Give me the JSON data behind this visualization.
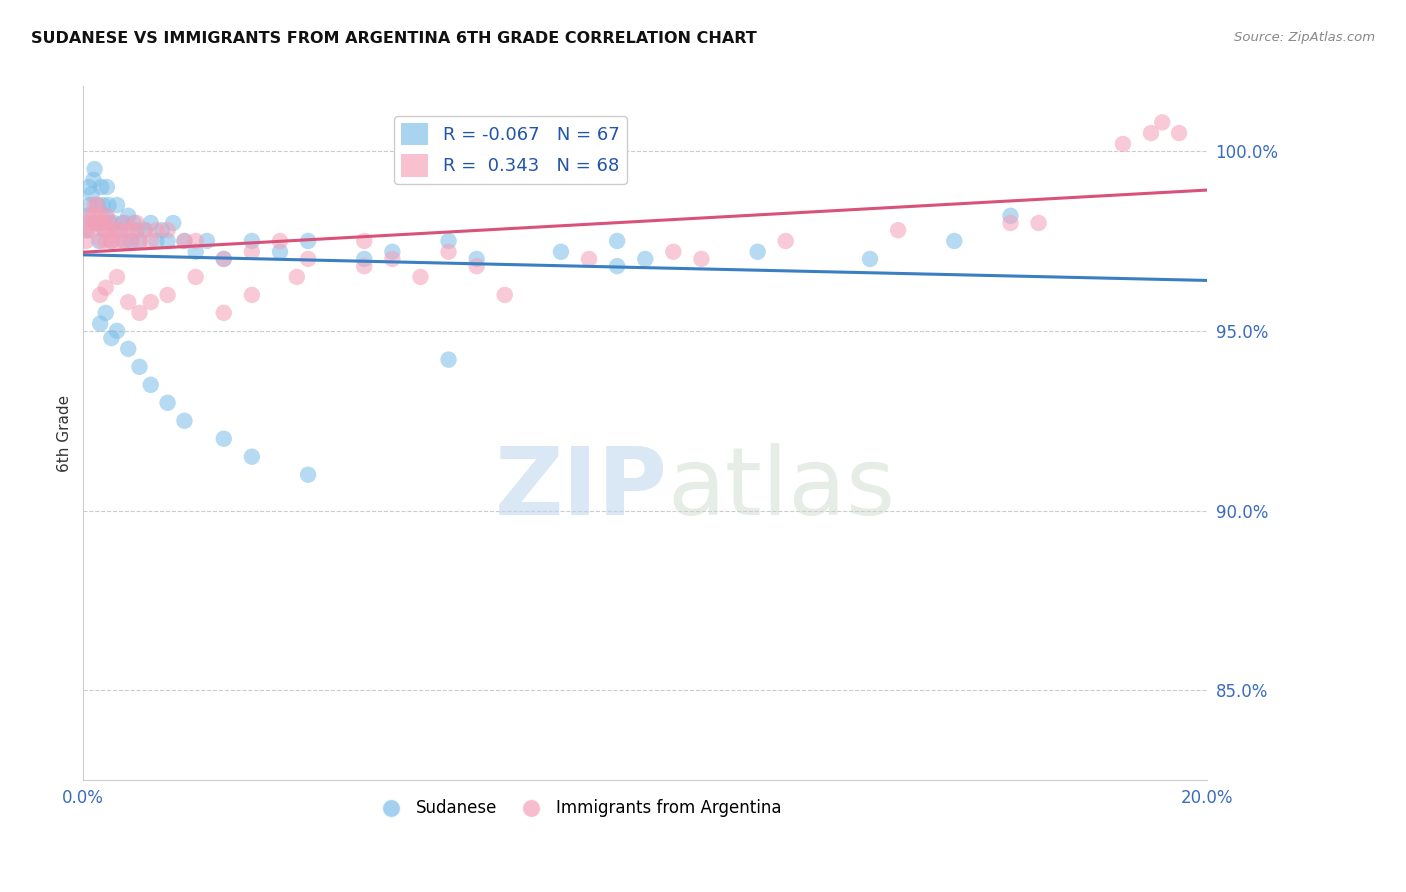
{
  "title": "SUDANESE VS IMMIGRANTS FROM ARGENTINA 6TH GRADE CORRELATION CHART",
  "source": "Source: ZipAtlas.com",
  "ylabel": "6th Grade",
  "xlim": [
    0.0,
    20.0
  ],
  "ylim": [
    82.5,
    101.8
  ],
  "yticks": [
    85.0,
    90.0,
    95.0,
    100.0
  ],
  "ytick_labels": [
    "85.0%",
    "90.0%",
    "95.0%",
    "100.0%"
  ],
  "xticks": [
    0.0,
    4.0,
    8.0,
    12.0,
    16.0,
    20.0
  ],
  "xtick_labels": [
    "0.0%",
    "",
    "",
    "",
    "",
    "20.0%"
  ],
  "R_blue": -0.067,
  "N_blue": 67,
  "R_pink": 0.343,
  "N_pink": 68,
  "blue_color": "#7bbde8",
  "pink_color": "#f4a0b8",
  "blue_line_color": "#3a7fc1",
  "pink_line_color": "#d9527a",
  "legend_label_blue": "Sudanese",
  "legend_label_pink": "Immigrants from Argentina",
  "watermark_zip": "ZIP",
  "watermark_atlas": "atlas",
  "blue_x": [
    0.05,
    0.08,
    0.1,
    0.12,
    0.15,
    0.18,
    0.2,
    0.22,
    0.25,
    0.28,
    0.3,
    0.32,
    0.35,
    0.38,
    0.4,
    0.42,
    0.45,
    0.48,
    0.5,
    0.55,
    0.6,
    0.65,
    0.7,
    0.75,
    0.8,
    0.85,
    0.9,
    0.95,
    1.0,
    1.1,
    1.2,
    1.3,
    1.4,
    1.5,
    1.6,
    1.8,
    2.0,
    2.2,
    2.5,
    3.0,
    3.5,
    4.0,
    5.0,
    5.5,
    6.5,
    7.0,
    8.5,
    9.5,
    10.0,
    12.0,
    14.0,
    15.5,
    16.5,
    0.3,
    0.4,
    0.5,
    0.6,
    0.8,
    1.0,
    1.2,
    1.5,
    1.8,
    2.5,
    3.0,
    4.0,
    6.5,
    9.5
  ],
  "blue_y": [
    97.8,
    98.2,
    99.0,
    98.5,
    98.8,
    99.2,
    99.5,
    98.0,
    98.5,
    97.5,
    98.0,
    99.0,
    98.5,
    97.8,
    98.2,
    99.0,
    98.5,
    98.0,
    97.5,
    98.0,
    98.5,
    97.8,
    98.0,
    97.5,
    98.2,
    97.5,
    98.0,
    97.8,
    97.5,
    97.8,
    98.0,
    97.5,
    97.8,
    97.5,
    98.0,
    97.5,
    97.2,
    97.5,
    97.0,
    97.5,
    97.2,
    97.5,
    97.0,
    97.2,
    97.5,
    97.0,
    97.2,
    97.5,
    97.0,
    97.2,
    97.0,
    97.5,
    98.2,
    95.2,
    95.5,
    94.8,
    95.0,
    94.5,
    94.0,
    93.5,
    93.0,
    92.5,
    92.0,
    91.5,
    91.0,
    94.2,
    96.8
  ],
  "pink_x": [
    0.05,
    0.08,
    0.1,
    0.12,
    0.15,
    0.18,
    0.2,
    0.22,
    0.25,
    0.28,
    0.3,
    0.32,
    0.35,
    0.38,
    0.4,
    0.42,
    0.45,
    0.48,
    0.5,
    0.55,
    0.6,
    0.65,
    0.7,
    0.75,
    0.8,
    0.85,
    0.9,
    0.95,
    1.0,
    1.1,
    1.2,
    1.3,
    1.5,
    1.8,
    2.0,
    2.5,
    3.0,
    3.5,
    4.0,
    5.0,
    5.5,
    6.5,
    0.3,
    0.4,
    0.6,
    0.8,
    1.0,
    1.2,
    1.5,
    2.0,
    2.5,
    3.0,
    3.8,
    5.0,
    6.0,
    7.0,
    9.0,
    10.5,
    12.5,
    14.5,
    16.5,
    18.5,
    19.0,
    19.2,
    7.5,
    11.0,
    17.0,
    19.5
  ],
  "pink_y": [
    97.5,
    97.8,
    98.0,
    98.2,
    97.8,
    98.2,
    98.5,
    98.0,
    98.5,
    98.0,
    98.2,
    97.5,
    98.0,
    97.8,
    97.5,
    98.2,
    97.8,
    98.0,
    97.5,
    97.8,
    97.5,
    97.8,
    97.5,
    98.0,
    97.8,
    97.5,
    97.8,
    98.0,
    97.5,
    97.8,
    97.5,
    97.8,
    97.8,
    97.5,
    97.5,
    97.0,
    97.2,
    97.5,
    97.0,
    97.5,
    97.0,
    97.2,
    96.0,
    96.2,
    96.5,
    95.8,
    95.5,
    95.8,
    96.0,
    96.5,
    95.5,
    96.0,
    96.5,
    96.8,
    96.5,
    96.8,
    97.0,
    97.2,
    97.5,
    97.8,
    98.0,
    100.2,
    100.5,
    100.8,
    96.0,
    97.0,
    98.0,
    100.5
  ]
}
